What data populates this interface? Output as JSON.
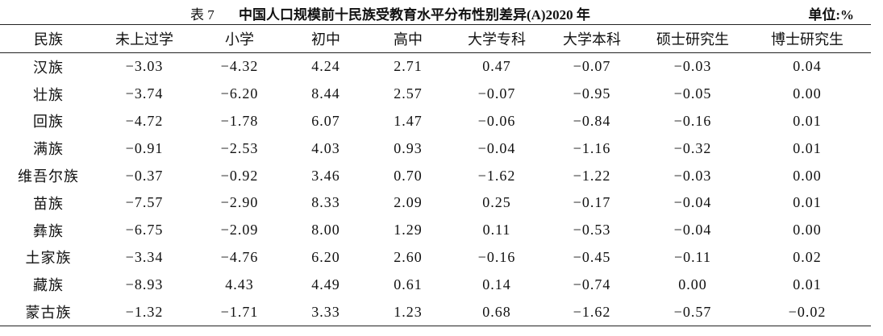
{
  "header": {
    "label": "表 7",
    "title": "中国人口规模前十民族受教育水平分布性别差异(A)2020 年",
    "unit": "单位:%"
  },
  "table": {
    "columns": [
      "民族",
      "未上过学",
      "小学",
      "初中",
      "高中",
      "大学专科",
      "大学本科",
      "硕士研究生",
      "博士研究生"
    ],
    "rows": [
      [
        "汉族",
        "−3.03",
        "−4.32",
        "4.24",
        "2.71",
        "0.47",
        "−0.07",
        "−0.03",
        "0.04"
      ],
      [
        "壮族",
        "−3.74",
        "−6.20",
        "8.44",
        "2.57",
        "−0.07",
        "−0.95",
        "−0.05",
        "0.00"
      ],
      [
        "回族",
        "−4.72",
        "−1.78",
        "6.07",
        "1.47",
        "−0.06",
        "−0.84",
        "−0.16",
        "0.01"
      ],
      [
        "满族",
        "−0.91",
        "−2.53",
        "4.03",
        "0.93",
        "−0.04",
        "−1.16",
        "−0.32",
        "0.01"
      ],
      [
        "维吾尔族",
        "−0.37",
        "−0.92",
        "3.46",
        "0.70",
        "−1.62",
        "−1.22",
        "−0.03",
        "0.00"
      ],
      [
        "苗族",
        "−7.57",
        "−2.90",
        "8.33",
        "2.09",
        "0.25",
        "−0.17",
        "−0.04",
        "0.01"
      ],
      [
        "彝族",
        "−6.75",
        "−2.09",
        "8.00",
        "1.29",
        "0.11",
        "−0.53",
        "−0.04",
        "0.00"
      ],
      [
        "土家族",
        "−3.34",
        "−4.76",
        "6.20",
        "2.60",
        "−0.16",
        "−0.45",
        "−0.11",
        "0.02"
      ],
      [
        "藏族",
        "−8.93",
        "4.43",
        "4.49",
        "0.61",
        "0.14",
        "−0.74",
        "0.00",
        "0.01"
      ],
      [
        "蒙古族",
        "−1.32",
        "−1.71",
        "3.33",
        "1.23",
        "0.68",
        "−1.62",
        "−0.57",
        "−0.02"
      ]
    ]
  }
}
